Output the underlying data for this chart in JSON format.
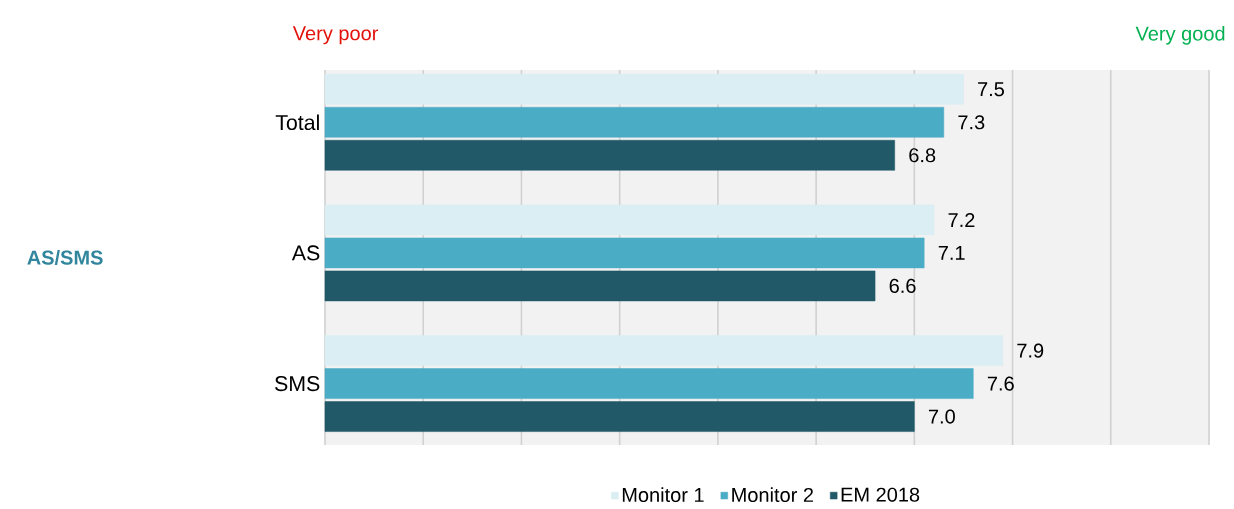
{
  "chart_data": {
    "type": "bar",
    "orientation": "horizontal",
    "categories": [
      "Total",
      "AS",
      "SMS"
    ],
    "series": [
      {
        "name": "Monitor 1",
        "color": "#daeef3",
        "values": [
          7.5,
          7.2,
          7.9
        ],
        "value_labels": [
          "7.5",
          "7.2",
          "7.9"
        ]
      },
      {
        "name": "Monitor 2",
        "color": "#4bacc6",
        "values": [
          7.3,
          7.1,
          7.6
        ],
        "value_labels": [
          "7.3",
          "7.1",
          "7.6"
        ]
      },
      {
        "name": "EM 2018",
        "color": "#215968",
        "values": [
          6.8,
          6.6,
          7.0
        ],
        "value_labels": [
          "6.8",
          "6.6",
          "7.0"
        ]
      }
    ],
    "xlim": [
      1,
      10
    ],
    "xticks": [
      {
        "value": 1,
        "label": null
      },
      {
        "value": 2,
        "label": null
      },
      {
        "value": 3,
        "label": null
      },
      {
        "value": 4,
        "label": null
      },
      {
        "value": 5,
        "label": null
      },
      {
        "value": 6,
        "label": null
      },
      {
        "value": 7,
        "label": null
      },
      {
        "value": 8,
        "label": null
      },
      {
        "value": 9,
        "label": null
      },
      {
        "value": 10,
        "label": null
      }
    ],
    "annotations": [
      "Very poor",
      "Very good",
      "AS/SMS"
    ],
    "grid": "x",
    "legend": "bottom",
    "tick_labels": "y"
  }
}
